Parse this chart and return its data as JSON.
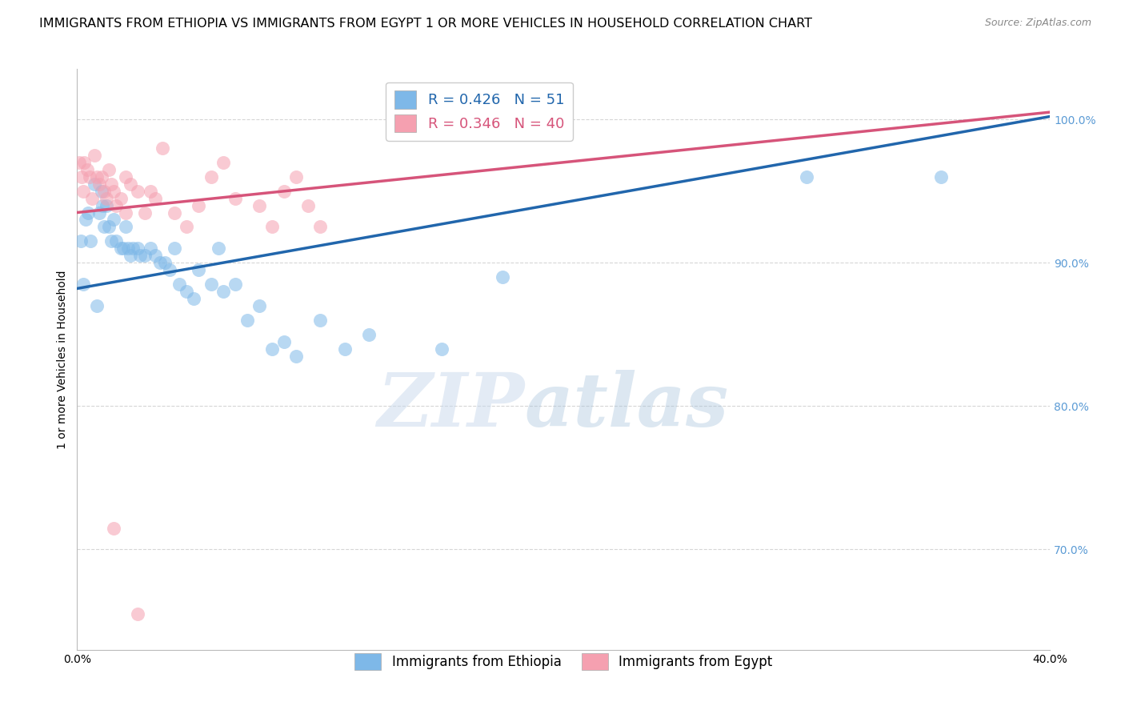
{
  "title": "IMMIGRANTS FROM ETHIOPIA VS IMMIGRANTS FROM EGYPT 1 OR MORE VEHICLES IN HOUSEHOLD CORRELATION CHART",
  "source": "Source: ZipAtlas.com",
  "ylabel": "1 or more Vehicles in Household",
  "xlim": [
    0.0,
    40.0
  ],
  "ylim": [
    63.0,
    103.5
  ],
  "yticks": [
    70.0,
    80.0,
    90.0,
    100.0
  ],
  "xticks": [
    0.0,
    5.0,
    10.0,
    15.0,
    20.0,
    25.0,
    30.0,
    35.0,
    40.0
  ],
  "ethiopia_R": 0.426,
  "ethiopia_N": 51,
  "egypt_R": 0.346,
  "egypt_N": 40,
  "ethiopia_color": "#7EB8E8",
  "egypt_color": "#F5A0B0",
  "ethiopia_line_color": "#2166AC",
  "egypt_line_color": "#D6547A",
  "legend_ethiopia": "Immigrants from Ethiopia",
  "legend_egypt": "Immigrants from Egypt",
  "ethiopia_line": [
    [
      0.0,
      88.2
    ],
    [
      40.0,
      100.2
    ]
  ],
  "egypt_line": [
    [
      0.0,
      93.5
    ],
    [
      40.0,
      100.5
    ]
  ],
  "ethiopia_points": [
    [
      0.15,
      91.5
    ],
    [
      0.25,
      88.5
    ],
    [
      0.35,
      93.0
    ],
    [
      0.45,
      93.5
    ],
    [
      0.55,
      91.5
    ],
    [
      0.7,
      95.5
    ],
    [
      0.8,
      87.0
    ],
    [
      0.9,
      93.5
    ],
    [
      1.0,
      95.0
    ],
    [
      1.05,
      94.0
    ],
    [
      1.1,
      92.5
    ],
    [
      1.2,
      94.0
    ],
    [
      1.3,
      92.5
    ],
    [
      1.4,
      91.5
    ],
    [
      1.5,
      93.0
    ],
    [
      1.6,
      91.5
    ],
    [
      1.8,
      91.0
    ],
    [
      1.9,
      91.0
    ],
    [
      2.0,
      92.5
    ],
    [
      2.1,
      91.0
    ],
    [
      2.2,
      90.5
    ],
    [
      2.3,
      91.0
    ],
    [
      2.5,
      91.0
    ],
    [
      2.6,
      90.5
    ],
    [
      2.8,
      90.5
    ],
    [
      3.0,
      91.0
    ],
    [
      3.2,
      90.5
    ],
    [
      3.4,
      90.0
    ],
    [
      3.6,
      90.0
    ],
    [
      3.8,
      89.5
    ],
    [
      4.0,
      91.0
    ],
    [
      4.2,
      88.5
    ],
    [
      4.5,
      88.0
    ],
    [
      4.8,
      87.5
    ],
    [
      5.0,
      89.5
    ],
    [
      5.5,
      88.5
    ],
    [
      5.8,
      91.0
    ],
    [
      6.0,
      88.0
    ],
    [
      6.5,
      88.5
    ],
    [
      7.0,
      86.0
    ],
    [
      7.5,
      87.0
    ],
    [
      8.0,
      84.0
    ],
    [
      8.5,
      84.5
    ],
    [
      9.0,
      83.5
    ],
    [
      10.0,
      86.0
    ],
    [
      11.0,
      84.0
    ],
    [
      12.0,
      85.0
    ],
    [
      15.0,
      84.0
    ],
    [
      17.5,
      89.0
    ],
    [
      30.0,
      96.0
    ],
    [
      35.5,
      96.0
    ]
  ],
  "egypt_points": [
    [
      0.1,
      97.0
    ],
    [
      0.2,
      96.0
    ],
    [
      0.25,
      95.0
    ],
    [
      0.3,
      97.0
    ],
    [
      0.4,
      96.5
    ],
    [
      0.5,
      96.0
    ],
    [
      0.6,
      94.5
    ],
    [
      0.7,
      97.5
    ],
    [
      0.8,
      96.0
    ],
    [
      0.9,
      95.5
    ],
    [
      1.0,
      96.0
    ],
    [
      1.1,
      95.0
    ],
    [
      1.2,
      94.5
    ],
    [
      1.3,
      96.5
    ],
    [
      1.4,
      95.5
    ],
    [
      1.5,
      95.0
    ],
    [
      1.6,
      94.0
    ],
    [
      1.8,
      94.5
    ],
    [
      2.0,
      96.0
    ],
    [
      2.0,
      93.5
    ],
    [
      2.2,
      95.5
    ],
    [
      2.5,
      95.0
    ],
    [
      2.8,
      93.5
    ],
    [
      3.0,
      95.0
    ],
    [
      3.2,
      94.5
    ],
    [
      3.5,
      98.0
    ],
    [
      4.0,
      93.5
    ],
    [
      4.5,
      92.5
    ],
    [
      5.0,
      94.0
    ],
    [
      5.5,
      96.0
    ],
    [
      6.0,
      97.0
    ],
    [
      6.5,
      94.5
    ],
    [
      7.5,
      94.0
    ],
    [
      8.0,
      92.5
    ],
    [
      8.5,
      95.0
    ],
    [
      9.0,
      96.0
    ],
    [
      9.5,
      94.0
    ],
    [
      10.0,
      92.5
    ],
    [
      1.5,
      71.5
    ],
    [
      2.5,
      65.5
    ]
  ],
  "watermark_zip": "ZIP",
  "watermark_atlas": "atlas",
  "background_color": "#FFFFFF",
  "grid_color": "#CCCCCC",
  "title_fontsize": 11.5,
  "axis_label_fontsize": 10,
  "tick_fontsize": 10,
  "legend_fontsize": 13,
  "source_fontsize": 9
}
